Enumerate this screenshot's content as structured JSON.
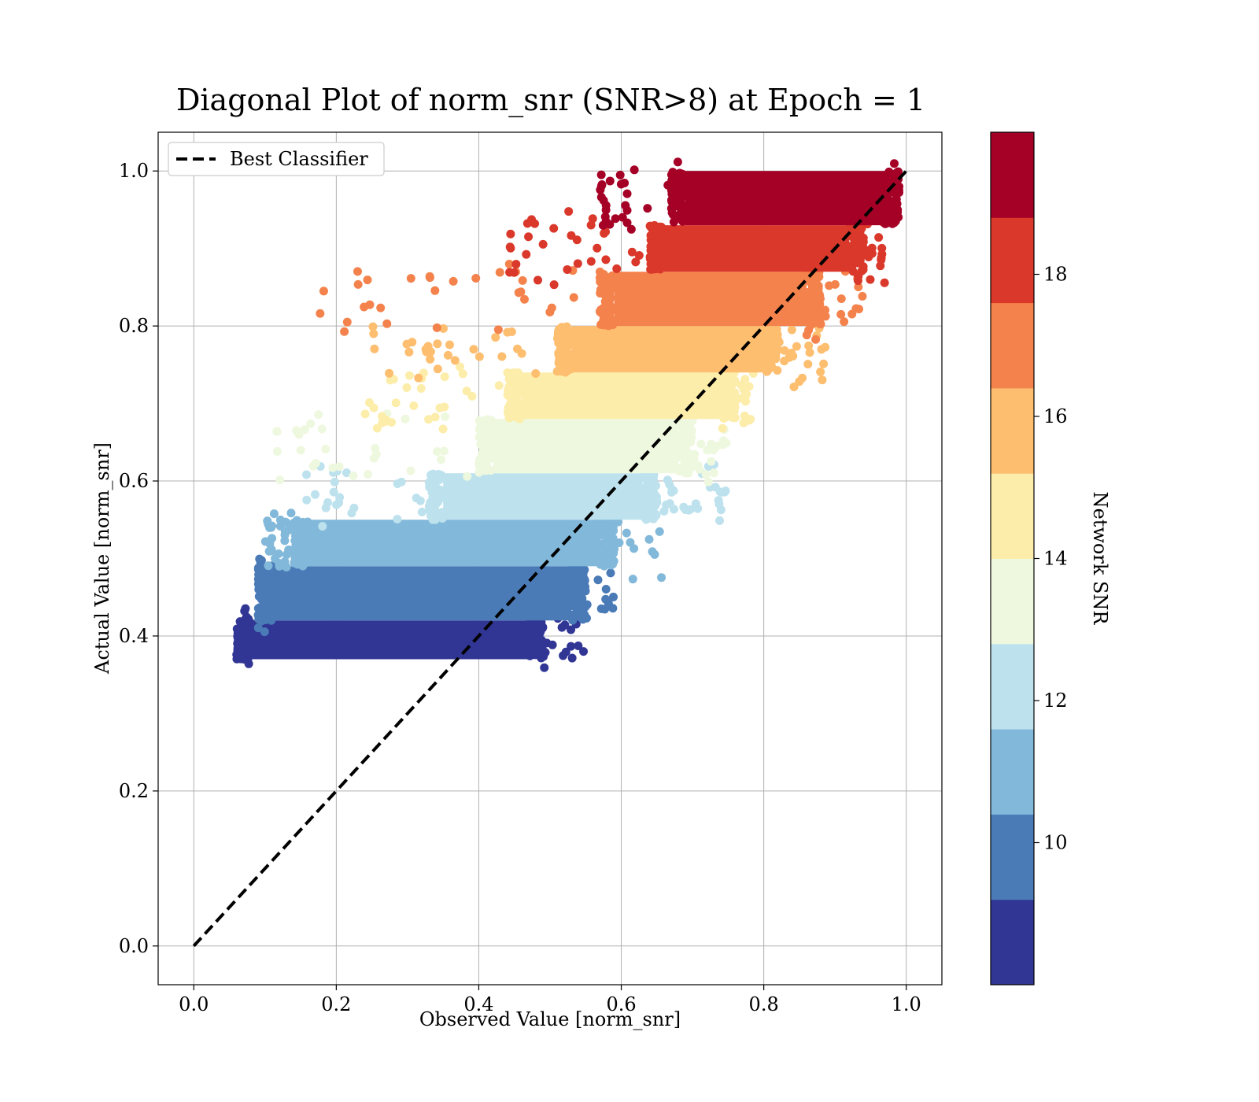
{
  "chart_data": {
    "type": "scatter",
    "title": "Diagonal Plot of norm_snr (SNR>8) at Epoch = 1",
    "xlabel": "Observed Value [norm_snr]",
    "ylabel": "Actual Value [norm_snr]",
    "xlim": [
      -0.05,
      1.05
    ],
    "ylim": [
      -0.05,
      1.05
    ],
    "x_ticks": [
      "0.0",
      "0.2",
      "0.4",
      "0.6",
      "0.8",
      "1.0"
    ],
    "y_ticks": [
      "0.0",
      "0.2",
      "0.4",
      "0.6",
      "0.8",
      "1.0"
    ],
    "grid": true,
    "legend": {
      "placement": "upper-left",
      "entries": [
        "Best Classifier"
      ]
    },
    "reference_line": {
      "name": "Best Classifier",
      "style": "dashed",
      "color": "#000000",
      "points": [
        [
          0.0,
          0.0
        ],
        [
          1.0,
          1.0
        ]
      ]
    },
    "colorbar": {
      "label": "Network SNR",
      "range": [
        8,
        20
      ],
      "ticks": [
        "10",
        "12",
        "14",
        "16",
        "18"
      ],
      "colors": [
        "#313695",
        "#4a7bb7",
        "#82b8d9",
        "#bde2ee",
        "#eef8df",
        "#fdedaa",
        "#fdbe70",
        "#f4824c",
        "#d9382a",
        "#a50026"
      ]
    },
    "bands": [
      {
        "snr": [
          8,
          9.2
        ],
        "color": "#313695",
        "y_range": [
          0.37,
          0.42
        ],
        "x_core": [
          0.08,
          0.47
        ],
        "x_outliers": [
          0.07,
          0.55
        ]
      },
      {
        "snr": [
          9.2,
          10.4
        ],
        "color": "#4a7bb7",
        "y_range": [
          0.42,
          0.49
        ],
        "x_core": [
          0.11,
          0.53
        ],
        "x_outliers": [
          0.09,
          0.59
        ]
      },
      {
        "snr": [
          10.4,
          11.6
        ],
        "color": "#82b8d9",
        "y_range": [
          0.49,
          0.55
        ],
        "x_core": [
          0.16,
          0.57
        ],
        "x_outliers": [
          0.1,
          0.66
        ]
      },
      {
        "snr": [
          11.6,
          12.8
        ],
        "color": "#bde2ee",
        "y_range": [
          0.55,
          0.61
        ],
        "x_core": [
          0.35,
          0.63
        ],
        "x_outliers": [
          0.13,
          0.75
        ]
      },
      {
        "snr": [
          12.8,
          14.0
        ],
        "color": "#eef8df",
        "y_range": [
          0.61,
          0.68
        ],
        "x_core": [
          0.42,
          0.68
        ],
        "x_outliers": [
          0.1,
          0.75
        ]
      },
      {
        "snr": [
          14.0,
          15.2
        ],
        "color": "#fdedaa",
        "y_range": [
          0.68,
          0.74
        ],
        "x_core": [
          0.46,
          0.74
        ],
        "x_outliers": [
          0.24,
          0.79
        ]
      },
      {
        "snr": [
          15.2,
          16.4
        ],
        "color": "#fdbe70",
        "y_range": [
          0.74,
          0.8
        ],
        "x_core": [
          0.53,
          0.8
        ],
        "x_outliers": [
          0.24,
          0.89
        ]
      },
      {
        "snr": [
          16.4,
          17.6
        ],
        "color": "#f4824c",
        "y_range": [
          0.8,
          0.87
        ],
        "x_core": [
          0.59,
          0.86
        ],
        "x_outliers": [
          0.17,
          0.94
        ]
      },
      {
        "snr": [
          17.6,
          18.8
        ],
        "color": "#d9382a",
        "y_range": [
          0.87,
          0.93
        ],
        "x_core": [
          0.66,
          0.92
        ],
        "x_outliers": [
          0.44,
          0.97
        ]
      },
      {
        "snr": [
          18.8,
          20.0
        ],
        "color": "#a50026",
        "y_range": [
          0.93,
          1.0
        ],
        "x_core": [
          0.69,
          0.97
        ],
        "x_outliers": [
          0.57,
          0.99
        ]
      }
    ]
  }
}
